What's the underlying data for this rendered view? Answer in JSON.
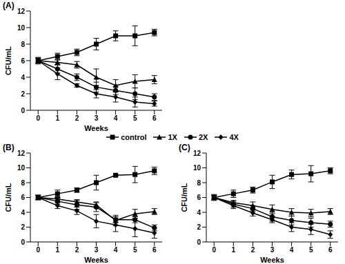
{
  "chart_data": [
    {
      "type": "line",
      "title": "(A)",
      "x_label": "Weeks",
      "y_label": "CFU/mL",
      "grid": false,
      "legend": "bottom",
      "x": [
        0,
        1,
        2,
        3,
        4,
        5,
        6
      ],
      "xlim": [
        -0.4,
        6.4
      ],
      "xticks": [
        0,
        1,
        2,
        3,
        4,
        5,
        6
      ],
      "ylim": [
        0,
        12
      ],
      "yticks": [
        0,
        2,
        4,
        6,
        8,
        10,
        12
      ],
      "series": [
        {
          "name": "control",
          "color": "#000000",
          "marker": "square",
          "values": [
            6,
            6.5,
            7,
            8,
            9,
            9,
            9.4
          ],
          "error": [
            0.4,
            0.4,
            0.4,
            0.7,
            0.6,
            1.2,
            0.4
          ]
        },
        {
          "name": "1X",
          "color": "#000000",
          "marker": "triangle",
          "values": [
            6,
            5.8,
            5.5,
            4,
            3,
            3.5,
            3.7
          ],
          "error": [
            0.3,
            0.3,
            0.4,
            1,
            0.7,
            0.8,
            0.5
          ]
        },
        {
          "name": "2X",
          "color": "#000000",
          "marker": "circle",
          "values": [
            6,
            5,
            4,
            2.8,
            2.4,
            2,
            1.6
          ],
          "error": [
            0.3,
            0.5,
            0.4,
            0.6,
            0.5,
            0.7,
            0.4
          ]
        },
        {
          "name": "4X",
          "color": "#000000",
          "marker": "diamond",
          "values": [
            6,
            4.4,
            3,
            2,
            1.6,
            1,
            0.8
          ],
          "error": [
            0.3,
            0.7,
            0.2,
            0.5,
            0.6,
            0.6,
            0.3
          ]
        }
      ]
    },
    {
      "type": "line",
      "title": "(B)",
      "x_label": "Weeks",
      "y_label": "CFU/mL",
      "grid": false,
      "x": [
        0,
        1,
        2,
        3,
        4,
        5,
        6
      ],
      "xlim": [
        -0.4,
        6.4
      ],
      "xticks": [
        0,
        1,
        2,
        3,
        4,
        5,
        6
      ],
      "ylim": [
        0,
        12
      ],
      "yticks": [
        0,
        2,
        4,
        6,
        8,
        10,
        12
      ],
      "series": [
        {
          "name": "control",
          "color": "#000000",
          "marker": "square",
          "values": [
            6,
            6.5,
            7,
            8,
            9,
            9.1,
            9.6
          ],
          "error": [
            0.3,
            0.5,
            0.3,
            1,
            0.1,
            1.1,
            0.5
          ]
        },
        {
          "name": "1X",
          "color": "#000000",
          "marker": "triangle",
          "values": [
            6,
            5.8,
            5.4,
            5,
            2.9,
            3.8,
            4.1
          ],
          "error": [
            0.3,
            0.3,
            0.3,
            0.4,
            0.7,
            0.6,
            0.4
          ]
        },
        {
          "name": "2X",
          "color": "#000000",
          "marker": "circle",
          "values": [
            6,
            5.5,
            5,
            4.7,
            3,
            3,
            1.9
          ],
          "error": [
            0.3,
            0.4,
            0.6,
            0.6,
            0.4,
            0.4,
            0.4
          ]
        },
        {
          "name": "4X",
          "color": "#000000",
          "marker": "diamond",
          "values": [
            6,
            4.9,
            4.2,
            2.8,
            2.3,
            1.8,
            1.2
          ],
          "error": [
            0.3,
            0.4,
            0.5,
            0.9,
            0.9,
            1.1,
            0.7
          ]
        }
      ]
    },
    {
      "type": "line",
      "title": "(C)",
      "x_label": "Weeks",
      "y_label": "CFU/mL",
      "grid": false,
      "x": [
        0,
        1,
        2,
        3,
        4,
        5,
        6
      ],
      "xlim": [
        -0.4,
        6.4
      ],
      "xticks": [
        0,
        1,
        2,
        3,
        4,
        5,
        6
      ],
      "ylim": [
        0,
        12
      ],
      "yticks": [
        0,
        2,
        4,
        6,
        8,
        10,
        12
      ],
      "series": [
        {
          "name": "control",
          "color": "#000000",
          "marker": "square",
          "values": [
            6,
            6.5,
            7,
            8.1,
            9.1,
            9.2,
            9.6
          ],
          "error": [
            0.4,
            0.5,
            0.4,
            0.9,
            0.6,
            1.1,
            0.4
          ]
        },
        {
          "name": "1X",
          "color": "#000000",
          "marker": "triangle",
          "values": [
            6,
            5.3,
            4.9,
            4.4,
            4,
            3.9,
            4.1
          ],
          "error": [
            0.3,
            0.3,
            0.5,
            0.6,
            0.5,
            0.5,
            0.4
          ]
        },
        {
          "name": "2X",
          "color": "#000000",
          "marker": "circle",
          "values": [
            6,
            5.1,
            4.5,
            3.4,
            2.9,
            2.6,
            2.4
          ],
          "error": [
            0.3,
            0.4,
            0.4,
            0.6,
            0.6,
            0.6,
            0.4
          ]
        },
        {
          "name": "4X",
          "color": "#000000",
          "marker": "diamond",
          "values": [
            6,
            4.9,
            3.9,
            3,
            2,
            1.7,
            1
          ],
          "error": [
            0.3,
            0.4,
            0.4,
            0.4,
            0.6,
            0.7,
            0.5
          ]
        }
      ]
    }
  ]
}
